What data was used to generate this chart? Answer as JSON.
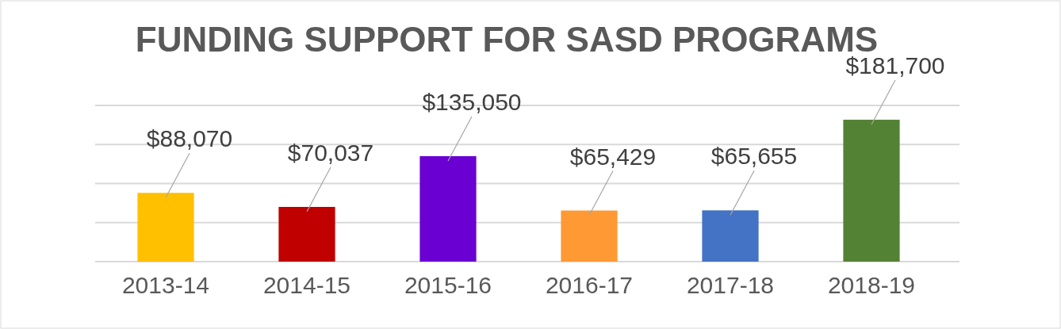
{
  "chart_data": {
    "type": "bar",
    "title": "FUNDING SUPPORT FOR SASD PROGRAMS",
    "categories": [
      "2013-14",
      "2014-15",
      "2015-16",
      "2016-17",
      "2017-18",
      "2018-19"
    ],
    "values": [
      88070,
      70037,
      135050,
      65429,
      65655,
      181700
    ],
    "colors": [
      "#ffc000",
      "#c00000",
      "#6a00d2",
      "#ff9933",
      "#4472c4",
      "#548235"
    ],
    "value_labels": [
      "$88,070",
      "$70,037",
      "$135,050",
      "$65,429",
      "$65,655",
      "$181,700"
    ],
    "ylim": [
      0,
      200000
    ],
    "yticks": [
      {
        "value": 0,
        "label": null
      },
      {
        "value": 50000,
        "label": null
      },
      {
        "value": 100000,
        "label": null
      },
      {
        "value": 150000,
        "label": null
      },
      {
        "value": 200000,
        "label": null
      }
    ],
    "grid": "y",
    "tick_labels": "x"
  }
}
